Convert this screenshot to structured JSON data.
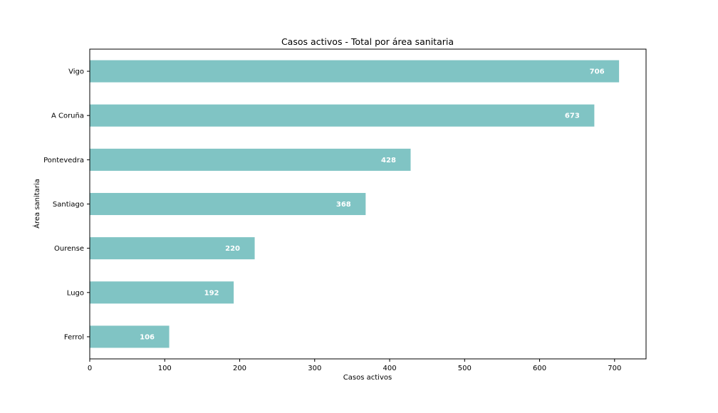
{
  "chart_data": {
    "type": "bar",
    "orientation": "horizontal",
    "title": "Casos activos - Total por área sanitaria",
    "xlabel": "Casos activos",
    "ylabel": "Área sanitaria",
    "categories": [
      "Vigo",
      "A Coruña",
      "Pontevedra",
      "Santiago",
      "Ourense",
      "Lugo",
      "Ferrol"
    ],
    "values": [
      706,
      673,
      428,
      368,
      220,
      192,
      106
    ],
    "data_labels": [
      "706",
      "673",
      "428",
      "368",
      "220",
      "192",
      "106"
    ],
    "xlim": [
      0,
      742
    ],
    "xticks": [
      0,
      100,
      200,
      300,
      400,
      500,
      600,
      700
    ],
    "xtick_labels": [
      "0",
      "100",
      "200",
      "300",
      "400",
      "500",
      "600",
      "700"
    ],
    "bar_color": "#80c4c4",
    "label_color": "#ffffff",
    "grid": false,
    "legend": "none"
  }
}
